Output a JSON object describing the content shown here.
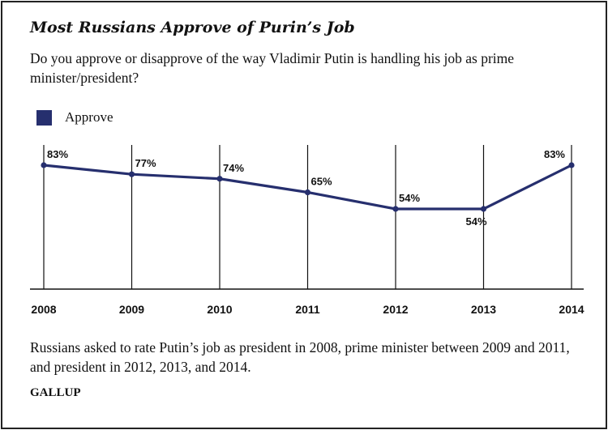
{
  "header": {
    "title": "Most Russians Approve of Purin’s Job",
    "subtitle": "Do you approve or disapprove of the way Vladimir Putin is handling his job as prime minister/president?"
  },
  "legend": {
    "label": "Approve",
    "color": "#262f6e"
  },
  "footer": {
    "note": "Russians asked to rate Putin’s job as president in 2008, prime minister between 2009 and 2011, and president in 2012, 2013, and 2014.",
    "source": "GALLUP"
  },
  "chart_data": {
    "type": "line",
    "title": "Most Russians Approve of Purin’s Job",
    "x": [
      "2008",
      "2009",
      "2010",
      "2011",
      "2012",
      "2013",
      "2014"
    ],
    "series": [
      {
        "name": "Approve",
        "values": [
          83,
          77,
          74,
          65,
          54,
          54,
          83
        ],
        "color": "#262f6e"
      }
    ],
    "data_labels": [
      "83%",
      "77%",
      "74%",
      "65%",
      "54%",
      "54%",
      "83%"
    ],
    "ylim": [
      0,
      100
    ],
    "grid": "vertical",
    "legend_position": "top-left"
  }
}
